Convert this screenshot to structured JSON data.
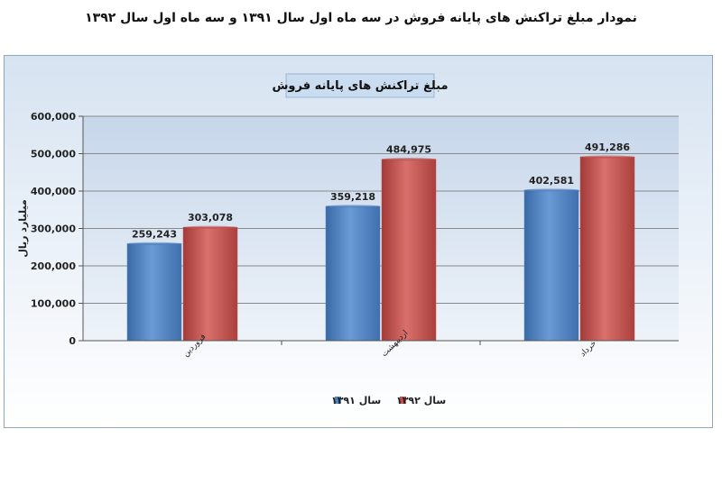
{
  "page_title": "نمودار مبلغ تراکنش های پایانه فروش در سه ماه اول سال ۱۳۹۱ و سه ماه اول سال ۱۳۹۲",
  "chart_data": {
    "type": "bar",
    "title": "مبلغ تراکنش های پایانه فروش",
    "ylabel": "میلیارد ریال",
    "xlabel": "",
    "ylim": [
      0,
      600000
    ],
    "yticks": [
      "0",
      "100,000",
      "200,000",
      "300,000",
      "400,000",
      "500,000",
      "600,000"
    ],
    "categories": [
      "فروردین",
      "اردیبهشت",
      "خرداد"
    ],
    "series": [
      {
        "name": "سال ۱۳۹۱",
        "color": "#4f81bd",
        "values": [
          259243,
          359218,
          402581
        ],
        "labels": [
          "259,243",
          "359,218",
          "402,581"
        ]
      },
      {
        "name": "سال ۱۳۹۲",
        "color": "#c0504d",
        "values": [
          303078,
          484975,
          491286
        ],
        "labels": [
          "303,078",
          "484,975",
          "491,286"
        ]
      }
    ],
    "grid": true,
    "legend": "bottom"
  }
}
